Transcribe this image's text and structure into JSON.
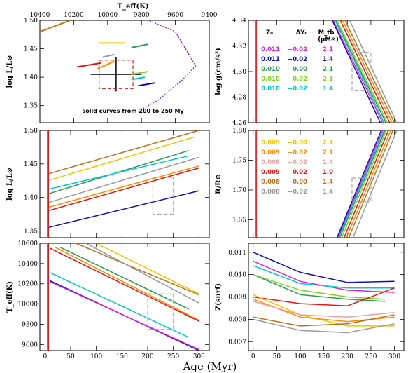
{
  "shared_xlabel": "Age (Myr)",
  "chart_data": [
    {
      "id": "hr",
      "type": "line",
      "title": "",
      "xlabel": "",
      "ylabel": "log L/L⊙",
      "top_xlabel": "T_eff(K)",
      "top_ticks": [
        "10400",
        "10200",
        "10000",
        "9800",
        "9600",
        "9400"
      ],
      "xlim": [
        10400,
        9400
      ],
      "ylim": [
        1.32,
        1.5
      ],
      "yticks": [
        1.35,
        1.4,
        1.45,
        1.5
      ],
      "note": "solid curves from 200 to 250 My",
      "observation": {
        "teff": 9950,
        "teff_err": 150,
        "logL": 1.405,
        "logL_err": 0.03
      },
      "series": [
        {
          "name": "brown",
          "color": "#b8741a",
          "x": [
            10400,
            10220
          ],
          "y": [
            1.48,
            1.5
          ]
        },
        {
          "name": "yellow",
          "color": "#f5c400",
          "x": [
            10050,
            9900
          ],
          "y": [
            1.46,
            1.46
          ]
        },
        {
          "name": "green",
          "color": "#2e9a5a",
          "x": [
            9860,
            9760
          ],
          "y": [
            1.452,
            1.458
          ]
        },
        {
          "name": "gray",
          "color": "#999999",
          "x": [
            10030,
            9960
          ],
          "y": [
            1.435,
            1.44
          ]
        },
        {
          "name": "orange",
          "color": "#ff8c00",
          "x": [
            10060,
            9960
          ],
          "y": [
            1.415,
            1.428
          ]
        },
        {
          "name": "red",
          "color": "#e21515",
          "x": [
            10180,
            10040
          ],
          "y": [
            1.418,
            1.425
          ]
        },
        {
          "name": "lightgreen",
          "color": "#7fd320",
          "x": [
            9860,
            9760
          ],
          "y": [
            1.405,
            1.41
          ]
        },
        {
          "name": "cyan",
          "color": "#00c8c8",
          "x": [
            9860,
            9780
          ],
          "y": [
            1.396,
            1.4
          ]
        },
        {
          "name": "blue",
          "color": "#0000b0",
          "x": [
            9820,
            9720
          ],
          "y": [
            1.385,
            1.39
          ]
        }
      ]
    },
    {
      "id": "logg",
      "type": "line",
      "xlabel": "",
      "ylabel": "log g(cm/s²)",
      "xlim": [
        -10,
        320
      ],
      "ylim": [
        4.26,
        4.34
      ],
      "yticks": [
        4.26,
        4.28,
        4.3,
        4.32,
        4.34
      ],
      "xticks": [
        0,
        50,
        100,
        150,
        200,
        250,
        300
      ],
      "legend": {
        "headers": [
          "Z₀",
          "ΔY₀",
          "M_tb"
        ],
        "unit": "(μM⊙)",
        "rows": [
          {
            "z": "0.011",
            "dy": "−0.02",
            "m": "2.1",
            "color": "#e020e0"
          },
          {
            "z": "0.011",
            "dy": "−0.02",
            "m": "1.4",
            "color": "#1010b0"
          },
          {
            "z": "0.010",
            "dy": "−0.00",
            "m": "2.1",
            "color": "#2e9a5a"
          },
          {
            "z": "0.010",
            "dy": "−0.02",
            "m": "2.1",
            "color": "#7fd320"
          },
          {
            "z": "0.010",
            "dy": "−0.02",
            "m": "1.4",
            "color": "#00c8c8"
          }
        ]
      },
      "series": [
        {
          "name": "s1",
          "color": "#e020e0",
          "x": [
            170,
            275
          ],
          "y": [
            4.34,
            4.26
          ]
        },
        {
          "name": "s2",
          "color": "#1010b0",
          "x": [
            168,
            270
          ],
          "y": [
            4.34,
            4.26
          ]
        },
        {
          "name": "s3",
          "color": "#2e9a5a",
          "x": [
            175,
            282
          ],
          "y": [
            4.34,
            4.26
          ]
        },
        {
          "name": "s4",
          "color": "#7fd320",
          "x": [
            178,
            285
          ],
          "y": [
            4.34,
            4.26
          ]
        },
        {
          "name": "s5",
          "color": "#00c8c8",
          "x": [
            174,
            278
          ],
          "y": [
            4.34,
            4.26
          ]
        },
        {
          "name": "s6",
          "color": "#e21515",
          "x": [
            185,
            290
          ],
          "y": [
            4.34,
            4.26
          ]
        },
        {
          "name": "s7",
          "color": "#ff8c00",
          "x": [
            190,
            295
          ],
          "y": [
            4.34,
            4.26
          ]
        },
        {
          "name": "s8",
          "color": "#b8741a",
          "x": [
            195,
            300
          ],
          "y": [
            4.34,
            4.26
          ]
        },
        {
          "name": "s9",
          "color": "#999999",
          "x": [
            205,
            305
          ],
          "y": [
            4.34,
            4.26
          ]
        }
      ],
      "box": {
        "x": [
          210,
          250
        ],
        "y": [
          4.285,
          4.315
        ]
      }
    },
    {
      "id": "logL",
      "type": "line",
      "ylabel": "log L/L⊙",
      "xlim": [
        -10,
        320
      ],
      "ylim": [
        1.34,
        1.5
      ],
      "yticks": [
        1.35,
        1.4,
        1.45,
        1.5
      ],
      "xticks": [
        0,
        50,
        100,
        150,
        200,
        250,
        300
      ],
      "series": [
        {
          "name": "brown",
          "color": "#b8741a",
          "x": [
            5,
            300
          ],
          "y": [
            1.435,
            1.5
          ]
        },
        {
          "name": "yellow",
          "color": "#f5c400",
          "x": [
            5,
            290
          ],
          "y": [
            1.425,
            1.49
          ]
        },
        {
          "name": "green",
          "color": "#2e9a5a",
          "x": [
            5,
            280
          ],
          "y": [
            1.405,
            1.47
          ]
        },
        {
          "name": "cyan",
          "color": "#00c8c8",
          "x": [
            5,
            280
          ],
          "y": [
            1.412,
            1.462
          ]
        },
        {
          "name": "gray",
          "color": "#999999",
          "x": [
            5,
            300
          ],
          "y": [
            1.392,
            1.46
          ]
        },
        {
          "name": "orange",
          "color": "#ff8c00",
          "x": [
            5,
            300
          ],
          "y": [
            1.385,
            1.447
          ]
        },
        {
          "name": "red",
          "color": "#e21515",
          "x": [
            5,
            300
          ],
          "y": [
            1.38,
            1.444
          ]
        },
        {
          "name": "blue",
          "color": "#1010b0",
          "x": [
            5,
            300
          ],
          "y": [
            1.355,
            1.41
          ]
        }
      ],
      "box": {
        "x": [
          210,
          250
        ],
        "y": [
          1.375,
          1.43
        ]
      }
    },
    {
      "id": "radius",
      "type": "line",
      "ylabel": "R/R⊙",
      "xlim": [
        -10,
        320
      ],
      "ylim": [
        1.62,
        1.8
      ],
      "yticks": [
        1.65,
        1.7,
        1.75,
        1.8
      ],
      "xticks": [
        0,
        50,
        100,
        150,
        200,
        250,
        300
      ],
      "legend": {
        "rows": [
          {
            "z": "0.009",
            "dy": "−0.00",
            "m": "2.1",
            "color": "#f5c400"
          },
          {
            "z": "0.009",
            "dy": "−0.02",
            "m": "2.1",
            "color": "#ff8c00"
          },
          {
            "z": "0.009",
            "dy": "−0.02",
            "m": "1.4",
            "color": "#f0a0a0"
          },
          {
            "z": "0.009",
            "dy": "−0.02",
            "m": "1.0",
            "color": "#e21515"
          },
          {
            "z": "0.008",
            "dy": "−0.00",
            "m": "1.4",
            "color": "#b8741a"
          },
          {
            "z": "0.008",
            "dy": "−0.02",
            "m": "1.4",
            "color": "#999999"
          }
        ]
      },
      "series": [
        {
          "name": "s1",
          "color": "#e020e0",
          "x": [
            180,
            275
          ],
          "y": [
            1.62,
            1.8
          ]
        },
        {
          "name": "s2",
          "color": "#1010b0",
          "x": [
            178,
            272
          ],
          "y": [
            1.62,
            1.8
          ]
        },
        {
          "name": "s3",
          "color": "#2e9a5a",
          "x": [
            184,
            280
          ],
          "y": [
            1.62,
            1.8
          ]
        },
        {
          "name": "s4",
          "color": "#00c8c8",
          "x": [
            182,
            278
          ],
          "y": [
            1.62,
            1.8
          ]
        },
        {
          "name": "s5",
          "color": "#7fd320",
          "x": [
            188,
            283
          ],
          "y": [
            1.62,
            1.8
          ]
        },
        {
          "name": "s6",
          "color": "#e21515",
          "x": [
            193,
            287
          ],
          "y": [
            1.62,
            1.8
          ]
        },
        {
          "name": "s7",
          "color": "#ff8c00",
          "x": [
            198,
            292
          ],
          "y": [
            1.62,
            1.8
          ]
        },
        {
          "name": "s8",
          "color": "#b8741a",
          "x": [
            203,
            297
          ],
          "y": [
            1.62,
            1.8
          ]
        },
        {
          "name": "s9",
          "color": "#999999",
          "x": [
            212,
            305
          ],
          "y": [
            1.62,
            1.8
          ]
        }
      ],
      "box": {
        "x": [
          210,
          250
        ],
        "y": [
          1.68,
          1.72
        ]
      }
    },
    {
      "id": "teff",
      "type": "line",
      "ylabel": "T_eff(K)",
      "xlim": [
        -10,
        320
      ],
      "ylim": [
        9540,
        10600
      ],
      "yticks": [
        9600,
        9800,
        10000,
        10200,
        10400,
        10600
      ],
      "xticks": [
        0,
        50,
        100,
        150,
        200,
        250,
        300
      ],
      "series": [
        {
          "name": "brown",
          "color": "#b8741a",
          "x": [
            60,
            300
          ],
          "y": [
            10600,
            10090
          ]
        },
        {
          "name": "orange",
          "color": "#ff8c00",
          "x": [
            20,
            300
          ],
          "y": [
            10560,
            9840
          ]
        },
        {
          "name": "red",
          "color": "#e21515",
          "x": [
            10,
            300
          ],
          "y": [
            10550,
            9830
          ]
        },
        {
          "name": "gray",
          "color": "#999999",
          "x": [
            80,
            300
          ],
          "y": [
            10600,
            10010
          ]
        },
        {
          "name": "green",
          "color": "#2e9a5a",
          "x": [
            30,
            280
          ],
          "y": [
            10560,
            9950
          ]
        },
        {
          "name": "cyan",
          "color": "#00c8c8",
          "x": [
            10,
            280
          ],
          "y": [
            10310,
            9670
          ]
        },
        {
          "name": "blue",
          "color": "#1010b0",
          "x": [
            10,
            300
          ],
          "y": [
            10230,
            9540
          ]
        },
        {
          "name": "magenta",
          "color": "#e020e0",
          "x": [
            10,
            300
          ],
          "y": [
            10220,
            9550
          ]
        },
        {
          "name": "yellow",
          "color": "#f5c400",
          "x": [
            100,
            300
          ],
          "y": [
            10600,
            10100
          ]
        }
      ],
      "box": {
        "x": [
          200,
          250
        ],
        "y": [
          9750,
          10100
        ]
      }
    },
    {
      "id": "zsurf",
      "type": "line",
      "ylabel": "Z(surf)",
      "xlim": [
        -10,
        320
      ],
      "ylim": [
        0.0066,
        0.0114
      ],
      "yticks": [
        0.007,
        0.008,
        0.009,
        0.01,
        0.011
      ],
      "xticks": [
        0,
        50,
        100,
        150,
        200,
        250,
        300
      ],
      "series": [
        {
          "name": "blue",
          "color": "#1010b0",
          "x": [
            0,
            100,
            200,
            300
          ],
          "y": [
            0.011,
            0.0101,
            0.00965,
            0.0097
          ]
        },
        {
          "name": "magenta",
          "color": "#e020e0",
          "x": [
            0,
            100,
            200,
            300
          ],
          "y": [
            0.0106,
            0.0097,
            0.0093,
            0.0092
          ]
        },
        {
          "name": "cyan",
          "color": "#00c8c8",
          "x": [
            0,
            100,
            200,
            300
          ],
          "y": [
            0.0104,
            0.0096,
            0.0094,
            0.0094
          ]
        },
        {
          "name": "green",
          "color": "#2e9a5a",
          "x": [
            0,
            100,
            200,
            280
          ],
          "y": [
            0.01,
            0.0091,
            0.0089,
            0.0088
          ]
        },
        {
          "name": "lightgreen",
          "color": "#7fd320",
          "x": [
            0,
            100,
            200,
            280
          ],
          "y": [
            0.01,
            0.0093,
            0.009,
            0.0089
          ]
        },
        {
          "name": "red",
          "color": "#e21515",
          "x": [
            0,
            100,
            200,
            300
          ],
          "y": [
            0.009,
            0.0087,
            0.0086,
            0.0094
          ]
        },
        {
          "name": "yellow",
          "color": "#f5c400",
          "x": [
            0,
            100,
            200,
            300
          ],
          "y": [
            0.0091,
            0.0082,
            0.0077,
            0.0077
          ]
        },
        {
          "name": "orange",
          "color": "#ff8c00",
          "x": [
            0,
            100,
            200,
            300
          ],
          "y": [
            0.0089,
            0.0081,
            0.0079,
            0.0081
          ]
        },
        {
          "name": "pink",
          "color": "#f0a0a0",
          "x": [
            0,
            100,
            200,
            300
          ],
          "y": [
            0.0088,
            0.0082,
            0.0081,
            0.0083
          ]
        },
        {
          "name": "brown",
          "color": "#b8741a",
          "x": [
            0,
            100,
            200,
            300
          ],
          "y": [
            0.0081,
            0.0077,
            0.0078,
            0.0082
          ]
        },
        {
          "name": "gray",
          "color": "#999999",
          "x": [
            0,
            100,
            200,
            300
          ],
          "y": [
            0.008,
            0.0075,
            0.0074,
            0.0078
          ]
        }
      ]
    }
  ]
}
